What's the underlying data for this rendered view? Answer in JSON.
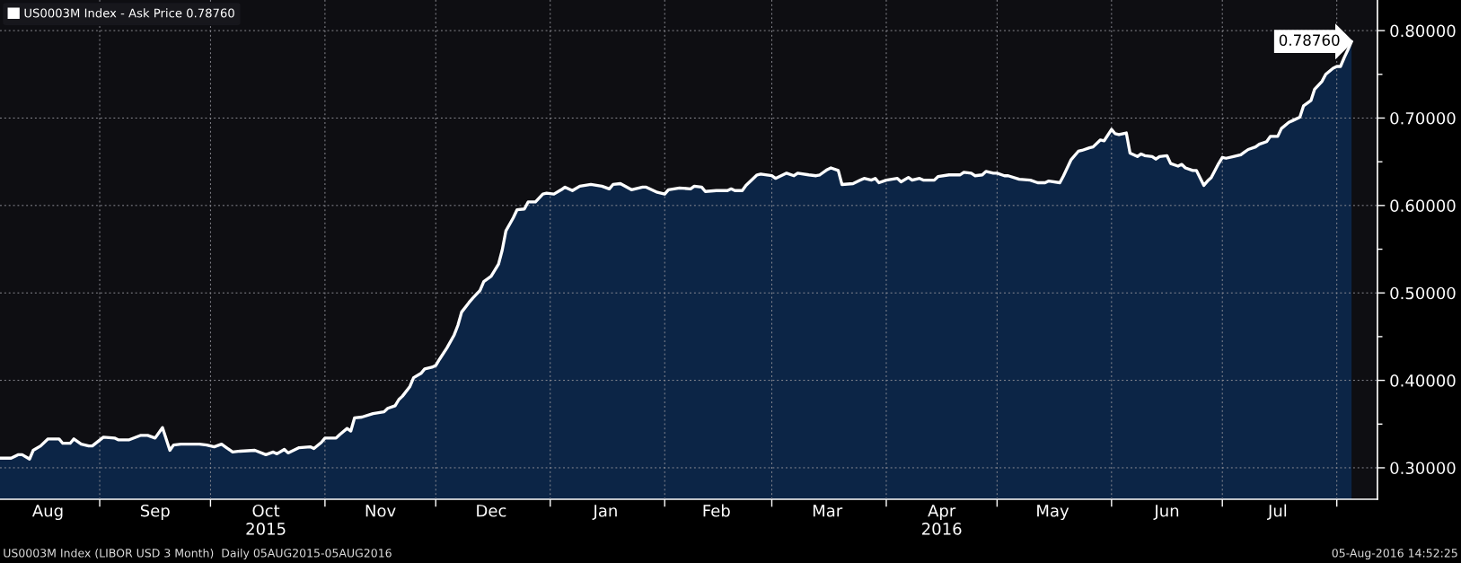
{
  "chart_data": {
    "type": "area",
    "x": [
      "2015-08-05",
      "2015-08-08",
      "2015-08-10",
      "2015-08-11",
      "2015-08-13",
      "2015-08-14",
      "2015-08-16",
      "2015-08-18",
      "2015-08-21",
      "2015-08-22",
      "2015-08-24",
      "2015-08-25",
      "2015-08-27",
      "2015-08-29",
      "2015-08-30",
      "2015-09-02",
      "2015-09-05",
      "2015-09-06",
      "2015-09-09",
      "2015-09-12",
      "2015-09-14",
      "2015-09-16",
      "2015-09-18",
      "2015-09-20",
      "2015-09-21",
      "2015-09-23",
      "2015-09-26",
      "2015-09-28",
      "2015-09-30",
      "2015-10-02",
      "2015-10-04",
      "2015-10-05",
      "2015-10-07",
      "2015-10-09",
      "2015-10-13",
      "2015-10-16",
      "2015-10-18",
      "2015-10-19",
      "2015-10-21",
      "2015-10-22",
      "2015-10-25",
      "2015-10-28",
      "2015-10-29",
      "2015-10-31",
      "2015-11-01",
      "2015-11-04",
      "2015-11-05",
      "2015-11-07",
      "2015-11-08",
      "2015-11-09",
      "2015-11-11",
      "2015-11-14",
      "2015-11-17",
      "2015-11-18",
      "2015-11-20",
      "2015-11-21",
      "2015-11-22",
      "2015-11-24",
      "2015-11-25",
      "2015-11-27",
      "2015-11-28",
      "2015-11-30",
      "2015-12-01",
      "2015-12-02",
      "2015-12-04",
      "2015-12-06",
      "2015-12-07",
      "2015-12-08",
      "2015-12-10",
      "2015-12-11",
      "2015-12-13",
      "2015-12-14",
      "2015-12-16",
      "2015-12-18",
      "2015-12-19",
      "2015-12-20",
      "2015-12-22",
      "2015-12-23",
      "2015-12-25",
      "2015-12-26",
      "2015-12-28",
      "2015-12-30",
      "2015-12-31",
      "2016-01-02",
      "2016-01-04",
      "2016-01-05",
      "2016-01-07",
      "2016-01-09",
      "2016-01-12",
      "2016-01-15",
      "2016-01-17",
      "2016-01-18",
      "2016-01-20",
      "2016-01-23",
      "2016-01-26",
      "2016-01-27",
      "2016-01-30",
      "2016-02-01",
      "2016-02-02",
      "2016-02-05",
      "2016-02-08",
      "2016-02-09",
      "2016-02-11",
      "2016-02-12",
      "2016-02-15",
      "2016-02-18",
      "2016-02-19",
      "2016-02-20",
      "2016-02-22",
      "2016-02-23",
      "2016-02-26",
      "2016-02-27",
      "2016-03-01",
      "2016-03-02",
      "2016-03-04",
      "2016-03-05",
      "2016-03-07",
      "2016-03-08",
      "2016-03-11",
      "2016-03-13",
      "2016-03-14",
      "2016-03-16",
      "2016-03-17",
      "2016-03-19",
      "2016-03-20",
      "2016-03-23",
      "2016-03-25",
      "2016-03-26",
      "2016-03-28",
      "2016-03-29",
      "2016-03-30",
      "2016-04-01",
      "2016-04-04",
      "2016-04-05",
      "2016-04-07",
      "2016-04-08",
      "2016-04-10",
      "2016-04-11",
      "2016-04-14",
      "2016-04-15",
      "2016-04-18",
      "2016-04-21",
      "2016-04-22",
      "2016-04-24",
      "2016-04-25",
      "2016-04-27",
      "2016-04-28",
      "2016-04-30",
      "2016-05-01",
      "2016-05-03",
      "2016-05-04",
      "2016-05-07",
      "2016-05-10",
      "2016-05-12",
      "2016-05-14",
      "2016-05-15",
      "2016-05-18",
      "2016-05-19",
      "2016-05-21",
      "2016-05-23",
      "2016-05-24",
      "2016-05-26",
      "2016-05-27",
      "2016-05-29",
      "2016-05-30",
      "2016-06-01",
      "2016-06-02",
      "2016-06-03",
      "2016-06-05",
      "2016-06-06",
      "2016-06-08",
      "2016-06-09",
      "2016-06-10",
      "2016-06-12",
      "2016-06-13",
      "2016-06-14",
      "2016-06-16",
      "2016-06-17",
      "2016-06-19",
      "2016-06-20",
      "2016-06-21",
      "2016-06-23",
      "2016-06-24",
      "2016-06-26",
      "2016-06-27",
      "2016-06-28",
      "2016-06-30",
      "2016-07-01",
      "2016-07-02",
      "2016-07-04",
      "2016-07-06",
      "2016-07-07",
      "2016-07-08",
      "2016-07-10",
      "2016-07-11",
      "2016-07-13",
      "2016-07-14",
      "2016-07-16",
      "2016-07-17",
      "2016-07-19",
      "2016-07-20",
      "2016-07-22",
      "2016-07-23",
      "2016-07-25",
      "2016-07-26",
      "2016-07-28",
      "2016-07-29",
      "2016-07-31",
      "2016-08-01",
      "2016-08-02",
      "2016-08-03",
      "2016-08-04",
      "2016-08-05"
    ],
    "series": [
      {
        "name": "US0003M Index - Ask Price 0.78760",
        "color": "#ffffff",
        "values": [
          0.311,
          0.311,
          0.315,
          0.315,
          0.31,
          0.32,
          0.325,
          0.333,
          0.333,
          0.328,
          0.328,
          0.333,
          0.327,
          0.325,
          0.325,
          0.335,
          0.334,
          0.332,
          0.332,
          0.337,
          0.337,
          0.334,
          0.346,
          0.32,
          0.326,
          0.327,
          0.327,
          0.327,
          0.326,
          0.324,
          0.327,
          0.324,
          0.318,
          0.319,
          0.32,
          0.315,
          0.318,
          0.316,
          0.321,
          0.317,
          0.323,
          0.324,
          0.322,
          0.329,
          0.334,
          0.334,
          0.338,
          0.345,
          0.342,
          0.357,
          0.358,
          0.362,
          0.364,
          0.368,
          0.371,
          0.378,
          0.382,
          0.393,
          0.403,
          0.408,
          0.413,
          0.415,
          0.417,
          0.424,
          0.437,
          0.452,
          0.463,
          0.478,
          0.489,
          0.494,
          0.503,
          0.513,
          0.519,
          0.533,
          0.549,
          0.571,
          0.586,
          0.595,
          0.596,
          0.604,
          0.604,
          0.613,
          0.614,
          0.613,
          0.618,
          0.621,
          0.617,
          0.622,
          0.624,
          0.622,
          0.619,
          0.624,
          0.625,
          0.618,
          0.621,
          0.621,
          0.615,
          0.613,
          0.618,
          0.62,
          0.619,
          0.622,
          0.621,
          0.616,
          0.617,
          0.617,
          0.619,
          0.617,
          0.617,
          0.623,
          0.635,
          0.636,
          0.634,
          0.631,
          0.635,
          0.637,
          0.634,
          0.637,
          0.635,
          0.634,
          0.635,
          0.641,
          0.643,
          0.64,
          0.624,
          0.625,
          0.629,
          0.631,
          0.629,
          0.631,
          0.626,
          0.629,
          0.631,
          0.627,
          0.632,
          0.629,
          0.631,
          0.629,
          0.629,
          0.633,
          0.635,
          0.635,
          0.638,
          0.637,
          0.634,
          0.635,
          0.639,
          0.637,
          0.637,
          0.634,
          0.634,
          0.63,
          0.629,
          0.626,
          0.626,
          0.628,
          0.626,
          0.634,
          0.652,
          0.662,
          0.663,
          0.666,
          0.667,
          0.675,
          0.674,
          0.687,
          0.682,
          0.681,
          0.683,
          0.66,
          0.656,
          0.659,
          0.657,
          0.656,
          0.653,
          0.656,
          0.657,
          0.648,
          0.645,
          0.647,
          0.643,
          0.64,
          0.64,
          0.623,
          0.628,
          0.632,
          0.648,
          0.655,
          0.654,
          0.656,
          0.658,
          0.661,
          0.664,
          0.667,
          0.67,
          0.673,
          0.679,
          0.679,
          0.688,
          0.695,
          0.697,
          0.701,
          0.714,
          0.72,
          0.733,
          0.742,
          0.75,
          0.757,
          0.759,
          0.759,
          0.769,
          0.778,
          0.7876
        ]
      }
    ],
    "xlim": [
      "2015-08-05",
      "2016-08-12"
    ],
    "ylim": [
      0.264,
      0.835
    ],
    "xticks": [
      {
        "value": "2015-09-01",
        "label": null
      },
      {
        "value": "2015-10-01",
        "label": null
      },
      {
        "value": "2015-11-01",
        "label": null
      },
      {
        "value": "2015-12-01",
        "label": null
      },
      {
        "value": "2016-01-01",
        "label": null
      },
      {
        "value": "2016-02-01",
        "label": null
      },
      {
        "value": "2016-03-01",
        "label": null
      },
      {
        "value": "2016-04-01",
        "label": null
      },
      {
        "value": "2016-05-01",
        "label": null
      },
      {
        "value": "2016-06-01",
        "label": null
      },
      {
        "value": "2016-07-01",
        "label": null
      },
      {
        "value": "2016-08-01",
        "label": null
      },
      {
        "value": "2015-08-18",
        "label": "Aug"
      },
      {
        "value": "2015-09-16",
        "label": "Sep"
      },
      {
        "value": "2015-10-16",
        "label": "Oct\n2015"
      },
      {
        "value": "2015-11-16",
        "label": "Nov"
      },
      {
        "value": "2015-12-16",
        "label": "Dec"
      },
      {
        "value": "2016-01-16",
        "label": "Jan"
      },
      {
        "value": "2016-02-15",
        "label": "Feb"
      },
      {
        "value": "2016-03-16",
        "label": "Mar"
      },
      {
        "value": "2016-04-16",
        "label": "Apr\n2016"
      },
      {
        "value": "2016-05-16",
        "label": "May"
      },
      {
        "value": "2016-06-16",
        "label": "Jun"
      },
      {
        "value": "2016-07-16",
        "label": "Jul"
      }
    ],
    "yticks": [
      {
        "value": 0.3,
        "label": "0.30000"
      },
      {
        "value": 0.35,
        "label": null
      },
      {
        "value": 0.4,
        "label": "0.40000"
      },
      {
        "value": 0.45,
        "label": null
      },
      {
        "value": 0.5,
        "label": "0.50000"
      },
      {
        "value": 0.55,
        "label": null
      },
      {
        "value": 0.6,
        "label": "0.60000"
      },
      {
        "value": 0.65,
        "label": null
      },
      {
        "value": 0.7,
        "label": "0.70000"
      },
      {
        "value": 0.75,
        "label": null
      },
      {
        "value": 0.8,
        "label": "0.80000"
      }
    ],
    "grid": true,
    "legend": "top left",
    "annotations": [
      "US0003M Index (LIBOR USD 3 Month)  Daily 05AUG2015-05AUG2016",
      "05-Aug-2016 14:52:25",
      {
        "text": "0.78760",
        "x": "2016-08-05",
        "y": 0.7876
      }
    ]
  }
}
